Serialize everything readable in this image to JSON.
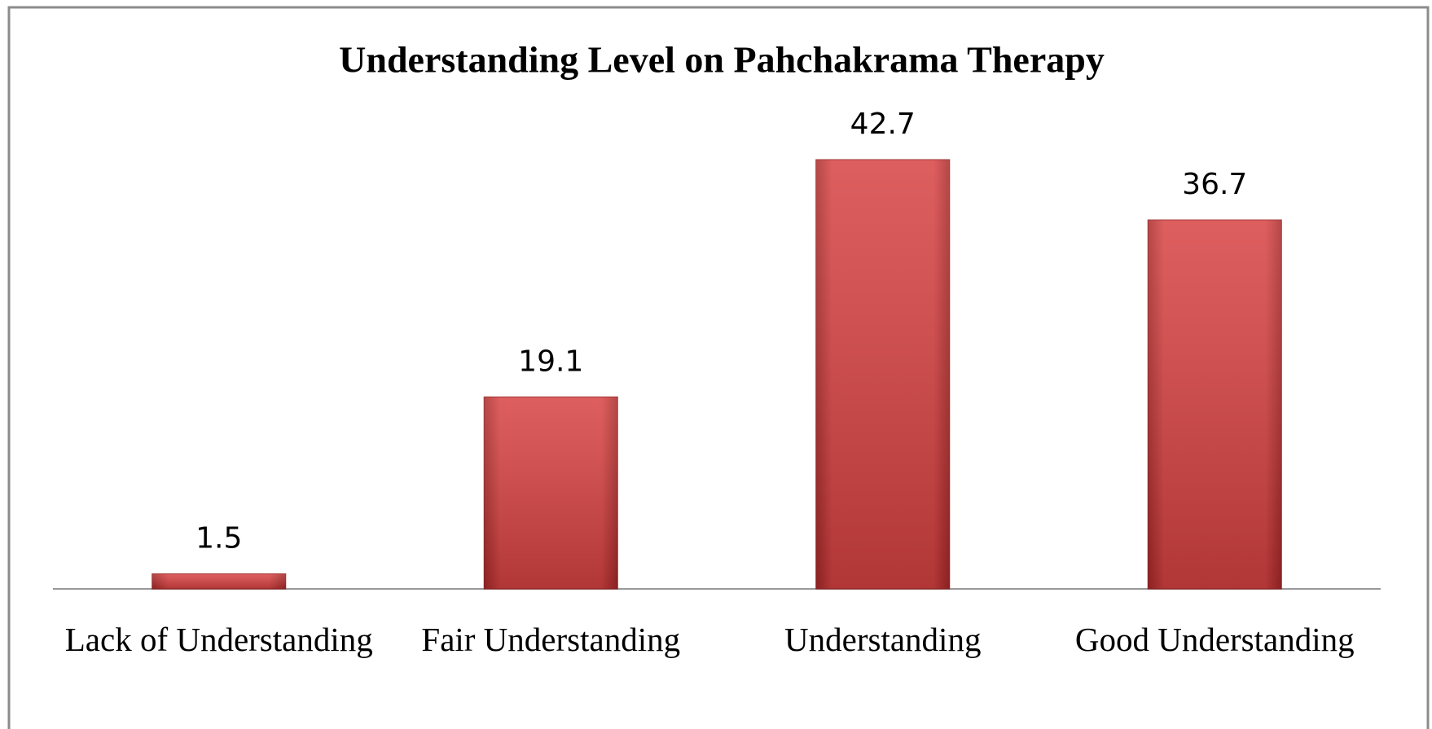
{
  "chart_data": {
    "type": "bar",
    "title": "Understanding Level on Pahchakrama Therapy",
    "categories": [
      "Lack of Understanding",
      "Fair Understanding",
      "Understanding",
      "Good Understanding"
    ],
    "values": [
      1.5,
      19.1,
      42.7,
      36.7
    ],
    "color": "#d64040"
  }
}
